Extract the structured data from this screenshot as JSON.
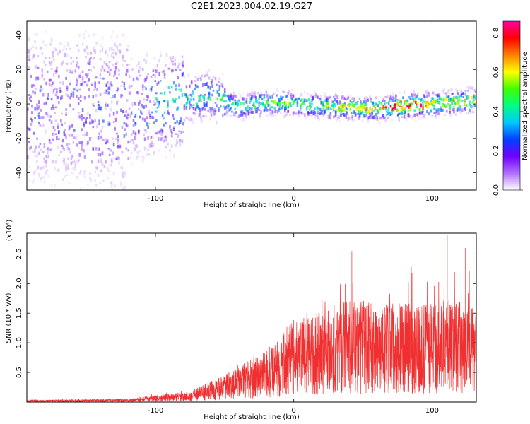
{
  "title": "C2E1.2023.004.02.19.G27",
  "chart_data": [
    {
      "type": "heatmap",
      "xlabel": "Height of straight line (km)",
      "ylabel": "Frequency (Hz)",
      "xlim": [
        -193,
        132
      ],
      "ylim": [
        -50,
        48
      ],
      "xticks": [
        -100,
        0,
        100
      ],
      "yticks": [
        -40,
        -20,
        0,
        20,
        40
      ],
      "colorbar": {
        "label": "Normalized spectral amplitude",
        "range": [
          0.0,
          0.86
        ],
        "ticks": [
          "0.0",
          "0.2",
          "0.4",
          "0.6",
          "0.8"
        ],
        "colors": [
          "#ffffff",
          "#b070ff",
          "#7000ff",
          "#0040ff",
          "#00c8ff",
          "#00ff80",
          "#40ff00",
          "#ffff00",
          "#ff8000",
          "#ff0000",
          "#ff00a0"
        ]
      },
      "ridge": [
        {
          "x": -170,
          "y": -2,
          "amp": 0.25
        },
        {
          "x": -130,
          "y": -5,
          "amp": 0.3
        },
        {
          "x": -100,
          "y": 0,
          "amp": 0.35
        },
        {
          "x": -60,
          "y": 5,
          "amp": 0.4
        },
        {
          "x": -40,
          "y": -2,
          "amp": 0.45
        },
        {
          "x": -20,
          "y": 1,
          "amp": 0.5
        },
        {
          "x": 0,
          "y": 0,
          "amp": 0.5
        },
        {
          "x": 30,
          "y": -2,
          "amp": 0.55
        },
        {
          "x": 60,
          "y": -3,
          "amp": 0.6
        },
        {
          "x": 80,
          "y": -1,
          "amp": 0.8
        },
        {
          "x": 100,
          "y": 0,
          "amp": 0.6
        },
        {
          "x": 130,
          "y": 2,
          "amp": 0.55
        }
      ]
    },
    {
      "type": "line",
      "xlabel": "Height of straight line (km)",
      "ylabel": "SNR (10 * v/v)",
      "yscale_label": "(x10⁴)",
      "xlim": [
        -193,
        132
      ],
      "ylim": [
        0,
        2.85
      ],
      "xticks": [
        -100,
        0,
        100
      ],
      "yticks": [
        "0.5",
        "1.0",
        "1.5",
        "2.0",
        "2.5"
      ],
      "color": "#f03030",
      "envelope": [
        {
          "x": -193,
          "mean": 0.02,
          "peak": 0.04
        },
        {
          "x": -120,
          "mean": 0.03,
          "peak": 0.06
        },
        {
          "x": -100,
          "mean": 0.06,
          "peak": 0.15
        },
        {
          "x": -75,
          "mean": 0.1,
          "peak": 0.22
        },
        {
          "x": -50,
          "mean": 0.25,
          "peak": 0.45
        },
        {
          "x": -30,
          "mean": 0.4,
          "peak": 0.9
        },
        {
          "x": -15,
          "mean": 0.5,
          "peak": 1.1
        },
        {
          "x": 0,
          "mean": 0.75,
          "peak": 1.4
        },
        {
          "x": 15,
          "mean": 0.8,
          "peak": 1.6
        },
        {
          "x": 30,
          "mean": 0.9,
          "peak": 2.0
        },
        {
          "x": 45,
          "mean": 0.95,
          "peak": 2.55
        },
        {
          "x": 60,
          "mean": 0.9,
          "peak": 2.1
        },
        {
          "x": 80,
          "mean": 0.9,
          "peak": 2.3
        },
        {
          "x": 100,
          "mean": 0.9,
          "peak": 2.1
        },
        {
          "x": 112,
          "mean": 0.95,
          "peak": 2.85
        },
        {
          "x": 125,
          "mean": 0.9,
          "peak": 2.6
        },
        {
          "x": 132,
          "mean": 0.85,
          "peak": 1.7
        }
      ],
      "spikes": [
        {
          "x": 42,
          "y": 2.55
        },
        {
          "x": 85,
          "y": 2.28
        },
        {
          "x": 111,
          "y": 2.82
        },
        {
          "x": 124,
          "y": 2.6
        }
      ]
    }
  ]
}
